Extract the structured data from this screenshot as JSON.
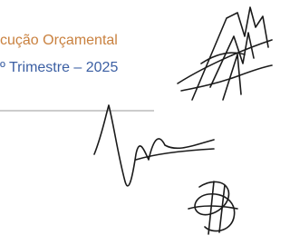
{
  "header": {
    "line1": "cução Orçamental",
    "line2": "º Trimestre – 2025"
  }
}
